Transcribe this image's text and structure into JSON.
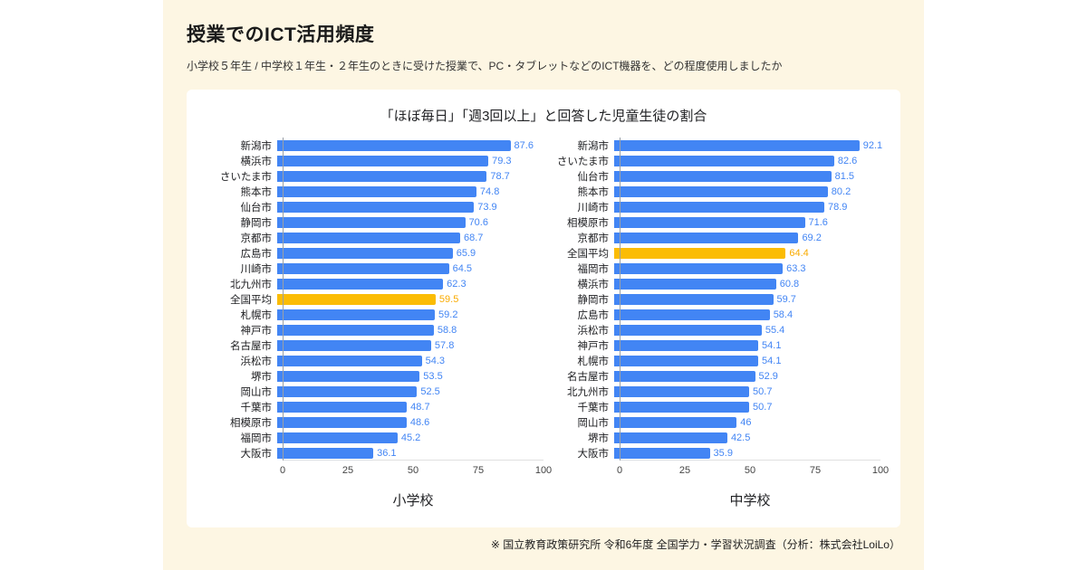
{
  "page": {
    "title": "授業でのICT活用頻度",
    "subtitle": "小学校５年生 / 中学校１年生・２年生のときに受けた授業で、PC・タブレットなどのICT機器を、どの程度使用しましたか",
    "footnote": "※ 国立教育政策研究所 令和6年度 全国学力・学習状況調査（分析：株式会社LoiLo）"
  },
  "colors": {
    "background_cream": "#fdf6e3",
    "bar_blue": "#4285f4",
    "bar_highlight_orange": "#fbbc04",
    "value_text_blue": "#4285f4",
    "value_text_orange": "#f9ab00"
  },
  "chart_data": {
    "type": "bar",
    "orientation": "horizontal",
    "title": "「ほぼ毎日」「週3回以上」と回答した児童生徒の割合",
    "xlim": [
      0,
      100
    ],
    "xticks": [
      0,
      25,
      50,
      75,
      100
    ],
    "grid": false,
    "highlight_category": "全国平均",
    "groups": [
      {
        "label": "小学校",
        "categories": [
          "新潟市",
          "横浜市",
          "さいたま市",
          "熊本市",
          "仙台市",
          "静岡市",
          "京都市",
          "広島市",
          "川崎市",
          "北九州市",
          "全国平均",
          "札幌市",
          "神戸市",
          "名古屋市",
          "浜松市",
          "堺市",
          "岡山市",
          "千葉市",
          "相模原市",
          "福岡市",
          "大阪市"
        ],
        "values": [
          87.6,
          79.3,
          78.7,
          74.8,
          73.9,
          70.6,
          68.7,
          65.9,
          64.5,
          62.3,
          59.5,
          59.2,
          58.8,
          57.8,
          54.3,
          53.5,
          52.5,
          48.7,
          48.6,
          45.2,
          36.1
        ]
      },
      {
        "label": "中学校",
        "categories": [
          "新潟市",
          "さいたま市",
          "仙台市",
          "熊本市",
          "川崎市",
          "相模原市",
          "京都市",
          "全国平均",
          "福岡市",
          "横浜市",
          "静岡市",
          "広島市",
          "浜松市",
          "神戸市",
          "札幌市",
          "名古屋市",
          "北九州市",
          "千葉市",
          "岡山市",
          "堺市",
          "大阪市"
        ],
        "values": [
          92.1,
          82.6,
          81.5,
          80.2,
          78.9,
          71.6,
          69.2,
          64.4,
          63.3,
          60.8,
          59.7,
          58.4,
          55.4,
          54.1,
          54.1,
          52.9,
          50.7,
          50.7,
          46,
          42.5,
          35.9
        ]
      }
    ]
  }
}
